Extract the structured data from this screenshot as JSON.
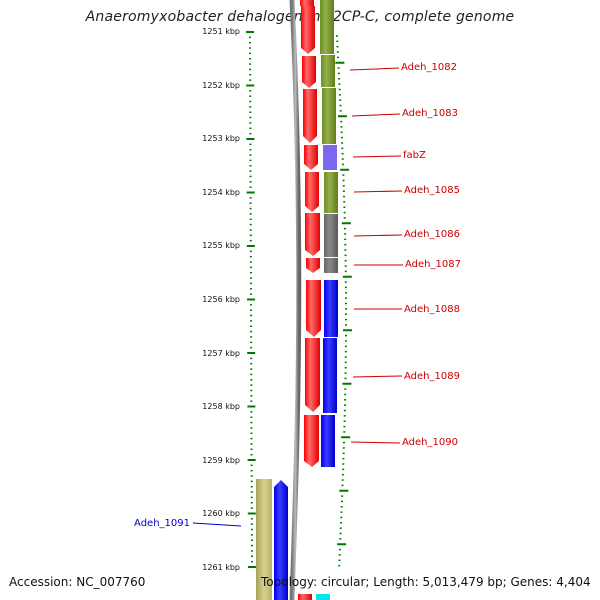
{
  "title": "Anaeromyxobacter dehalogenans 2CP-C, complete genome",
  "footer": {
    "accession": "Accession: NC_007760",
    "summary": "Topology: circular; Length: 5,013,479 bp; Genes: 4,404"
  },
  "scale": {
    "ticks": [
      "1251 kbp",
      "1252 kbp",
      "1253 kbp",
      "1254 kbp",
      "1255 kbp",
      "1256 kbp",
      "1257 kbp",
      "1258 kbp",
      "1259 kbp",
      "1260 kbp",
      "1261 kbp"
    ]
  },
  "genes": [
    {
      "label": "Adeh_1082",
      "color": "#cc0000"
    },
    {
      "label": "Adeh_1083",
      "color": "#cc0000"
    },
    {
      "label": "fabZ",
      "color": "#cc0000"
    },
    {
      "label": "Adeh_1085",
      "color": "#cc0000"
    },
    {
      "label": "Adeh_1086",
      "color": "#cc0000"
    },
    {
      "label": "Adeh_1087",
      "color": "#cc0000"
    },
    {
      "label": "Adeh_1088",
      "color": "#cc0000"
    },
    {
      "label": "Adeh_1089",
      "color": "#cc0000"
    },
    {
      "label": "Adeh_1090",
      "color": "#cc0000"
    },
    {
      "label": "Adeh_1091",
      "color": "#0000cc"
    }
  ],
  "colors": {
    "forward_strand": "#ff0000",
    "blue_feature": "#0000ff",
    "olive_feature": "#6b8e23",
    "purple_feature": "#7b68ee",
    "gray_feature": "#707070",
    "khaki_feature": "#bdb76b",
    "cyan_feature": "#00e5ee",
    "tick_green": "#007700",
    "backbone": "#888888"
  }
}
